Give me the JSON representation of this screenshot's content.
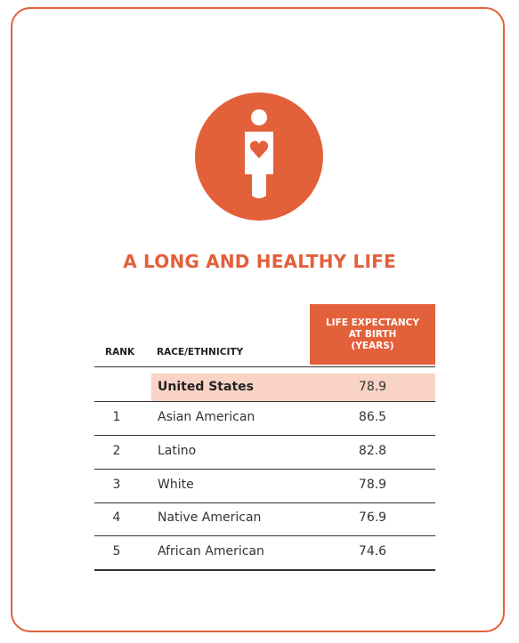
{
  "title": "A LONG AND HEALTHY LIFE",
  "table": {
    "headers": {
      "rank": "RANK",
      "group": "RACE/ETHNICITY",
      "value": [
        "LIFE EXPECTANCY",
        "AT BIRTH",
        "(YEARS)"
      ]
    },
    "national": {
      "group": "United States",
      "value": 78.9
    },
    "rows": [
      {
        "rank": 1,
        "group": "Asian American",
        "value": 86.5
      },
      {
        "rank": 2,
        "group": "Latino",
        "value": 82.8
      },
      {
        "rank": 3,
        "group": "White",
        "value": 78.9
      },
      {
        "rank": 4,
        "group": "Native American",
        "value": 76.9
      },
      {
        "rank": 5,
        "group": "African American",
        "value": 74.6
      }
    ]
  }
}
